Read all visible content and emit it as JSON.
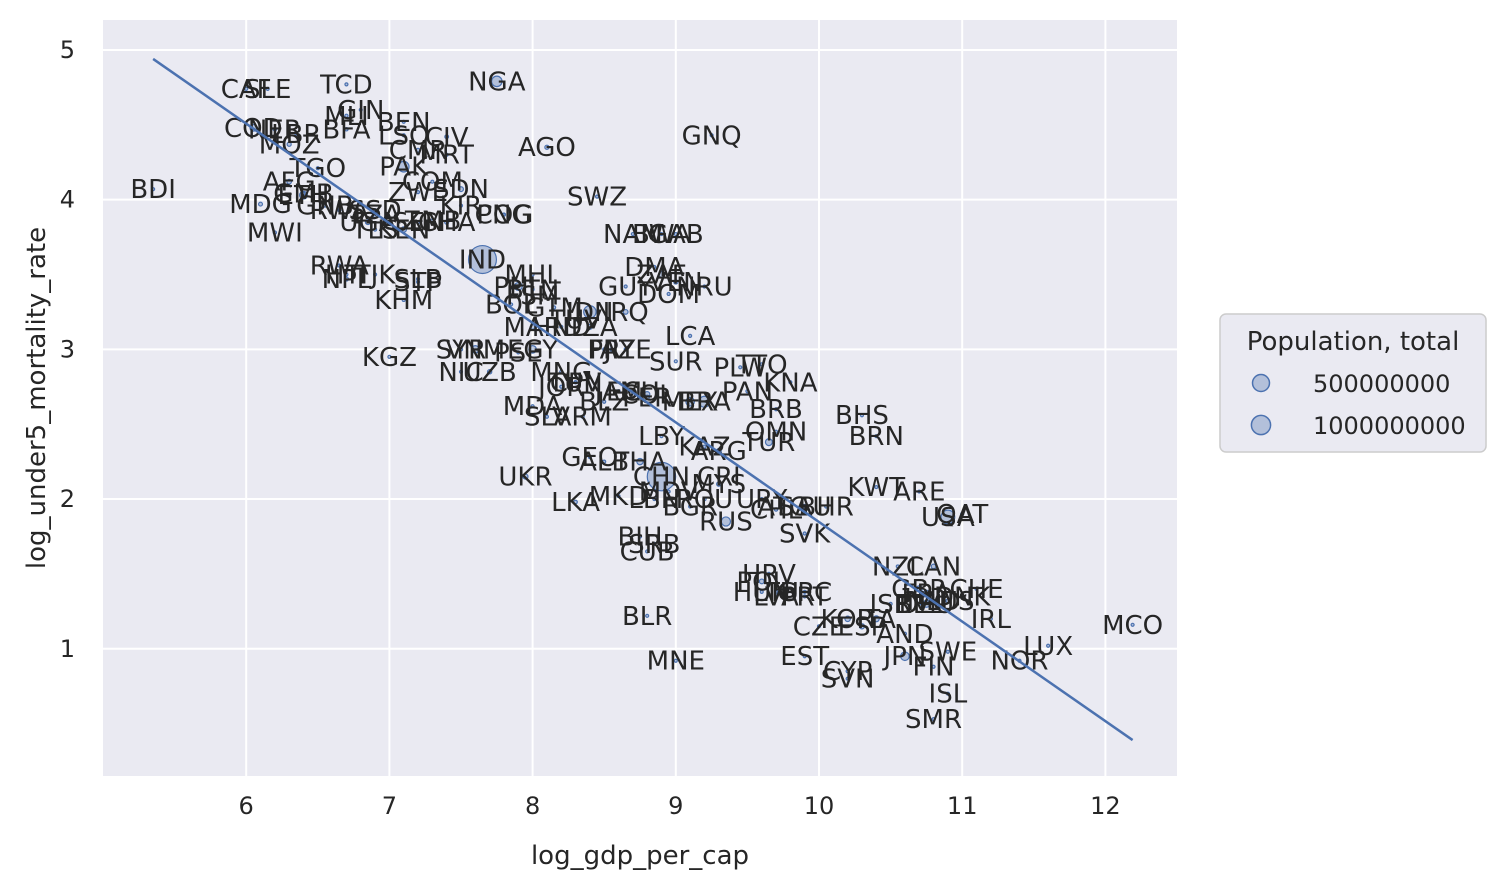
{
  "chart_data": {
    "type": "scatter",
    "title": "",
    "xlabel": "log_gdp_per_cap",
    "ylabel": "log_under5_mortality_rate",
    "xlim": [
      5.0,
      12.5
    ],
    "ylim": [
      0.15,
      5.2
    ],
    "xticks": [
      6,
      7,
      8,
      9,
      10,
      11,
      12
    ],
    "yticks": [
      1,
      2,
      3,
      4,
      5
    ],
    "grid": true,
    "legend": {
      "title": "Population, total",
      "placement": "right",
      "entries": [
        {
          "label": "500000000",
          "size": 500000000
        },
        {
          "label": "1000000000",
          "size": 1000000000
        }
      ]
    },
    "regression_line": {
      "x": [
        5.35,
        12.19
      ],
      "y": [
        4.94,
        0.39
      ]
    },
    "points": [
      {
        "label": "BDI",
        "x": 5.35,
        "y": 4.07,
        "pop": 11000000
      },
      {
        "label": "CAF",
        "x": 6.0,
        "y": 4.74,
        "pop": 5000000
      },
      {
        "label": "SLE",
        "x": 6.15,
        "y": 4.74,
        "pop": 7000000
      },
      {
        "label": "COD",
        "x": 6.05,
        "y": 4.48,
        "pop": 78000000
      },
      {
        "label": "NER",
        "x": 6.2,
        "y": 4.47,
        "pop": 21000000
      },
      {
        "label": "MOZ",
        "x": 6.3,
        "y": 4.37,
        "pop": 29000000
      },
      {
        "label": "LBR",
        "x": 6.35,
        "y": 4.44,
        "pop": 4700000
      },
      {
        "label": "TCD",
        "x": 6.7,
        "y": 4.77,
        "pop": 15000000
      },
      {
        "label": "GIN",
        "x": 6.8,
        "y": 4.6,
        "pop": 12000000
      },
      {
        "label": "MLI",
        "x": 6.7,
        "y": 4.56,
        "pop": 18000000
      },
      {
        "label": "BFA",
        "x": 6.7,
        "y": 4.47,
        "pop": 19000000
      },
      {
        "label": "BEN",
        "x": 7.1,
        "y": 4.52,
        "pop": 11000000
      },
      {
        "label": "LSO",
        "x": 7.1,
        "y": 4.43,
        "pop": 2200000
      },
      {
        "label": "CIV",
        "x": 7.4,
        "y": 4.42,
        "pop": 24000000
      },
      {
        "label": "CMR",
        "x": 7.2,
        "y": 4.33,
        "pop": 24000000
      },
      {
        "label": "MRT",
        "x": 7.4,
        "y": 4.3,
        "pop": 4300000
      },
      {
        "label": "TGO",
        "x": 6.5,
        "y": 4.21,
        "pop": 7600000
      },
      {
        "label": "PAK",
        "x": 7.1,
        "y": 4.22,
        "pop": 197000000
      },
      {
        "label": "GMB",
        "x": 6.4,
        "y": 4.04,
        "pop": 2100000
      },
      {
        "label": "AFG",
        "x": 6.3,
        "y": 4.12,
        "pop": 36000000
      },
      {
        "label": "COM",
        "x": 7.3,
        "y": 4.12,
        "pop": 800000
      },
      {
        "label": "SDN",
        "x": 7.5,
        "y": 4.07,
        "pop": 41000000
      },
      {
        "label": "ETH",
        "x": 6.4,
        "y": 4.03,
        "pop": 105000000
      },
      {
        "label": "ZWE",
        "x": 7.2,
        "y": 4.05,
        "pop": 14000000
      },
      {
        "label": "MDG",
        "x": 6.1,
        "y": 3.97,
        "pop": 26000000
      },
      {
        "label": "GNB",
        "x": 6.55,
        "y": 3.96,
        "pop": 1800000
      },
      {
        "label": "RWA",
        "x": 6.65,
        "y": 3.93,
        "pop": 12000000
      },
      {
        "label": "SSD",
        "x": 6.9,
        "y": 3.93,
        "pop": 11000000
      },
      {
        "label": "TZA",
        "x": 6.9,
        "y": 3.9,
        "pop": 56000000
      },
      {
        "label": "KIR",
        "x": 7.5,
        "y": 3.96,
        "pop": 110000
      },
      {
        "label": "MWI",
        "x": 6.2,
        "y": 3.78,
        "pop": 18000000
      },
      {
        "label": "UGA",
        "x": 6.85,
        "y": 3.85,
        "pop": 43000000
      },
      {
        "label": "TLS",
        "x": 6.9,
        "y": 3.8,
        "pop": 1300000
      },
      {
        "label": "KEN",
        "x": 7.1,
        "y": 3.8,
        "pop": 50000000
      },
      {
        "label": "SEN",
        "x": 7.2,
        "y": 3.85,
        "pop": 16000000
      },
      {
        "label": "ZMB",
        "x": 7.3,
        "y": 3.86,
        "pop": 17000000
      },
      {
        "label": "GHA",
        "x": 7.4,
        "y": 3.85,
        "pop": 29000000
      },
      {
        "label": "PNG",
        "x": 7.8,
        "y": 3.9,
        "pop": 8300000
      },
      {
        "label": "COG",
        "x": 7.8,
        "y": 3.9,
        "pop": 5200000
      },
      {
        "label": "NGA",
        "x": 7.75,
        "y": 4.79,
        "pop": 191000000
      },
      {
        "label": "AGO",
        "x": 8.1,
        "y": 4.35,
        "pop": 30000000
      },
      {
        "label": "GNQ",
        "x": 9.25,
        "y": 4.43,
        "pop": 1300000
      },
      {
        "label": "SWZ",
        "x": 8.45,
        "y": 4.02,
        "pop": 1100000
      },
      {
        "label": "NAM",
        "x": 8.7,
        "y": 3.77,
        "pop": 2500000
      },
      {
        "label": "BWA",
        "x": 8.9,
        "y": 3.77,
        "pop": 2200000
      },
      {
        "label": "GAB",
        "x": 9.0,
        "y": 3.77,
        "pop": 2000000
      },
      {
        "label": "RWA",
        "x": 6.65,
        "y": 3.56,
        "pop": 12000000
      },
      {
        "label": "TJK",
        "x": 6.9,
        "y": 3.5,
        "pop": 9000000
      },
      {
        "label": "HTI",
        "x": 6.7,
        "y": 3.5,
        "pop": 11000000
      },
      {
        "label": "NPL",
        "x": 6.7,
        "y": 3.47,
        "pop": 28000000
      },
      {
        "label": "SLB",
        "x": 7.2,
        "y": 3.47,
        "pop": 650000
      },
      {
        "label": "STP",
        "x": 7.2,
        "y": 3.45,
        "pop": 200000
      },
      {
        "label": "KHM",
        "x": 7.1,
        "y": 3.33,
        "pop": 16000000
      },
      {
        "label": "IND",
        "x": 7.65,
        "y": 3.6,
        "pop": 1350000000
      },
      {
        "label": "MHL",
        "x": 8.0,
        "y": 3.5,
        "pop": 58000
      },
      {
        "label": "PHL",
        "x": 7.9,
        "y": 3.42,
        "pop": 107000000
      },
      {
        "label": "BTN",
        "x": 8.0,
        "y": 3.4,
        "pop": 750000
      },
      {
        "label": "FSM",
        "x": 8.0,
        "y": 3.36,
        "pop": 110000
      },
      {
        "label": "BOL",
        "x": 7.85,
        "y": 3.3,
        "pop": 11000000
      },
      {
        "label": "GTM",
        "x": 8.15,
        "y": 3.28,
        "pop": 17000000
      },
      {
        "label": "TUV",
        "x": 8.3,
        "y": 3.2,
        "pop": 11000
      },
      {
        "label": "IDN",
        "x": 8.4,
        "y": 3.25,
        "pop": 265000000
      },
      {
        "label": "IRQ",
        "x": 8.65,
        "y": 3.25,
        "pop": 38000000
      },
      {
        "label": "GUY",
        "x": 8.65,
        "y": 3.42,
        "pop": 780000
      },
      {
        "label": "DMA",
        "x": 8.85,
        "y": 3.55,
        "pop": 72000
      },
      {
        "label": "ZAF",
        "x": 8.9,
        "y": 3.5,
        "pop": 57000000
      },
      {
        "label": "VEN",
        "x": 9.0,
        "y": 3.45,
        "pop": 29000000
      },
      {
        "label": "NRU",
        "x": 9.2,
        "y": 3.42,
        "pop": 12000
      },
      {
        "label": "DOM",
        "x": 8.95,
        "y": 3.37,
        "pop": 10700000
      },
      {
        "label": "MAR",
        "x": 8.0,
        "y": 3.15,
        "pop": 36000000
      },
      {
        "label": "HND",
        "x": 8.2,
        "y": 3.15,
        "pop": 9400000
      },
      {
        "label": "DZA",
        "x": 8.4,
        "y": 3.15,
        "pop": 42000000
      },
      {
        "label": "FJI",
        "x": 8.5,
        "y": 3.0,
        "pop": 880000
      },
      {
        "label": "PRY",
        "x": 8.55,
        "y": 3.0,
        "pop": 6900000
      },
      {
        "label": "AZE",
        "x": 8.65,
        "y": 3.0,
        "pop": 9900000
      },
      {
        "label": "LCA",
        "x": 9.1,
        "y": 3.09,
        "pop": 180000
      },
      {
        "label": "KGZ",
        "x": 7.0,
        "y": 2.95,
        "pop": 6300000
      },
      {
        "label": "SYR",
        "x": 7.5,
        "y": 3.0,
        "pop": 17000000
      },
      {
        "label": "VNM",
        "x": 7.6,
        "y": 3.0,
        "pop": 95000000
      },
      {
        "label": "PSE",
        "x": 7.9,
        "y": 2.98,
        "pop": 4500000
      },
      {
        "label": "EGY",
        "x": 8.0,
        "y": 3.0,
        "pop": 98000000
      },
      {
        "label": "NIC",
        "x": 7.5,
        "y": 2.85,
        "pop": 6500000
      },
      {
        "label": "UZB",
        "x": 7.7,
        "y": 2.85,
        "pop": 32000000
      },
      {
        "label": "MNG",
        "x": 8.2,
        "y": 2.85,
        "pop": 3200000
      },
      {
        "label": "SUR",
        "x": 9.0,
        "y": 2.92,
        "pop": 570000
      },
      {
        "label": "TTO",
        "x": 9.6,
        "y": 2.9,
        "pop": 1400000
      },
      {
        "label": "PLW",
        "x": 9.45,
        "y": 2.88,
        "pop": 18000
      },
      {
        "label": "CPV",
        "x": 8.3,
        "y": 2.78,
        "pop": 540000
      },
      {
        "label": "JOR",
        "x": 8.2,
        "y": 2.75,
        "pop": 10000000
      },
      {
        "label": "TUN",
        "x": 8.3,
        "y": 2.78,
        "pop": 11500000
      },
      {
        "label": "ECU",
        "x": 8.7,
        "y": 2.72,
        "pop": 17000000
      },
      {
        "label": "COL",
        "x": 8.8,
        "y": 2.7,
        "pop": 49000000
      },
      {
        "label": "PER",
        "x": 8.8,
        "y": 2.68,
        "pop": 32000000
      },
      {
        "label": "JAM",
        "x": 8.6,
        "y": 2.72,
        "pop": 2900000
      },
      {
        "label": "MEX",
        "x": 9.1,
        "y": 2.65,
        "pop": 126000000
      },
      {
        "label": "PAN",
        "x": 9.5,
        "y": 2.72,
        "pop": 4200000
      },
      {
        "label": "KNA",
        "x": 9.8,
        "y": 2.78,
        "pop": 52000
      },
      {
        "label": "BRA",
        "x": 9.2,
        "y": 2.65,
        "pop": 209000000
      },
      {
        "label": "MDA",
        "x": 8.0,
        "y": 2.62,
        "pop": 3500000
      },
      {
        "label": "SLV",
        "x": 8.1,
        "y": 2.55,
        "pop": 6400000
      },
      {
        "label": "ARM",
        "x": 8.35,
        "y": 2.55,
        "pop": 2950000
      },
      {
        "label": "BLZ",
        "x": 8.5,
        "y": 2.65,
        "pop": 380000
      },
      {
        "label": "BRB",
        "x": 9.7,
        "y": 2.6,
        "pop": 290000
      },
      {
        "label": "BHS",
        "x": 10.3,
        "y": 2.56,
        "pop": 390000
      },
      {
        "label": "LBY",
        "x": 8.9,
        "y": 2.42,
        "pop": 6700000
      },
      {
        "label": "OMN",
        "x": 9.7,
        "y": 2.45,
        "pop": 4800000
      },
      {
        "label": "TUR",
        "x": 9.65,
        "y": 2.38,
        "pop": 82000000
      },
      {
        "label": "BRN",
        "x": 10.4,
        "y": 2.42,
        "pop": 430000
      },
      {
        "label": "ARG",
        "x": 9.3,
        "y": 2.32,
        "pop": 44000000
      },
      {
        "label": "KAZ",
        "x": 9.2,
        "y": 2.35,
        "pop": 18000000
      },
      {
        "label": "GEO",
        "x": 8.4,
        "y": 2.28,
        "pop": 3700000
      },
      {
        "label": "ALB",
        "x": 8.5,
        "y": 2.25,
        "pop": 2900000
      },
      {
        "label": "THA",
        "x": 8.75,
        "y": 2.25,
        "pop": 69000000
      },
      {
        "label": "UKR",
        "x": 7.95,
        "y": 2.15,
        "pop": 44000000
      },
      {
        "label": "CHN",
        "x": 8.9,
        "y": 2.15,
        "pop": 1400000000
      },
      {
        "label": "CRI",
        "x": 9.3,
        "y": 2.15,
        "pop": 5000000
      },
      {
        "label": "MYS",
        "x": 9.3,
        "y": 2.1,
        "pop": 32000000
      },
      {
        "label": "KWT",
        "x": 10.4,
        "y": 2.08,
        "pop": 4100000
      },
      {
        "label": "ARE",
        "x": 10.7,
        "y": 2.05,
        "pop": 9600000
      },
      {
        "label": "MKD",
        "x": 8.6,
        "y": 2.02,
        "pop": 2100000
      },
      {
        "label": "LBN",
        "x": 8.85,
        "y": 2.0,
        "pop": 6800000
      },
      {
        "label": "MDV",
        "x": 8.95,
        "y": 2.05,
        "pop": 520000
      },
      {
        "label": "LKA",
        "x": 8.3,
        "y": 1.98,
        "pop": 21700000
      },
      {
        "label": "ROU",
        "x": 9.2,
        "y": 2.0,
        "pop": 19500000
      },
      {
        "label": "URY",
        "x": 9.6,
        "y": 2.0,
        "pop": 3500000
      },
      {
        "label": "ATG",
        "x": 9.75,
        "y": 1.95,
        "pop": 96000
      },
      {
        "label": "BHR",
        "x": 10.05,
        "y": 1.95,
        "pop": 1600000
      },
      {
        "label": "SAU",
        "x": 9.9,
        "y": 1.95,
        "pop": 33700000
      },
      {
        "label": "CHL",
        "x": 9.7,
        "y": 1.93,
        "pop": 18700000
      },
      {
        "label": "BGR",
        "x": 9.1,
        "y": 1.95,
        "pop": 7000000
      },
      {
        "label": "RUS",
        "x": 9.35,
        "y": 1.85,
        "pop": 144000000
      },
      {
        "label": "QAT",
        "x": 11.0,
        "y": 1.9,
        "pop": 2800000
      },
      {
        "label": "USA",
        "x": 10.9,
        "y": 1.88,
        "pop": 327000000
      },
      {
        "label": "SVK",
        "x": 9.9,
        "y": 1.77,
        "pop": 5400000
      },
      {
        "label": "BIH",
        "x": 8.75,
        "y": 1.75,
        "pop": 3300000
      },
      {
        "label": "SRB",
        "x": 8.85,
        "y": 1.7,
        "pop": 7000000
      },
      {
        "label": "CUB",
        "x": 8.8,
        "y": 1.65,
        "pop": 11300000
      },
      {
        "label": "NZL",
        "x": 10.55,
        "y": 1.55,
        "pop": 4900000
      },
      {
        "label": "CAN",
        "x": 10.8,
        "y": 1.55,
        "pop": 37000000
      },
      {
        "label": "HRV",
        "x": 9.65,
        "y": 1.5,
        "pop": 4100000
      },
      {
        "label": "POL",
        "x": 9.6,
        "y": 1.45,
        "pop": 38000000
      },
      {
        "label": "GBR",
        "x": 10.7,
        "y": 1.4,
        "pop": 66000000
      },
      {
        "label": "FRA",
        "x": 10.75,
        "y": 1.37,
        "pop": 67000000
      },
      {
        "label": "CHE",
        "x": 11.1,
        "y": 1.4,
        "pop": 8500000
      },
      {
        "label": "DNK",
        "x": 11.0,
        "y": 1.35,
        "pop": 5800000
      },
      {
        "label": "LTU",
        "x": 9.7,
        "y": 1.38,
        "pop": 2800000
      },
      {
        "label": "HUN",
        "x": 9.6,
        "y": 1.38,
        "pop": 9800000
      },
      {
        "label": "LVA",
        "x": 9.7,
        "y": 1.35,
        "pop": 1900000
      },
      {
        "label": "PRT",
        "x": 9.9,
        "y": 1.35,
        "pop": 10300000
      },
      {
        "label": "GRC",
        "x": 9.9,
        "y": 1.38,
        "pop": 10700000
      },
      {
        "label": "ISR",
        "x": 10.5,
        "y": 1.3,
        "pop": 8900000
      },
      {
        "label": "BEL",
        "x": 10.7,
        "y": 1.3,
        "pop": 11400000
      },
      {
        "label": "NLD",
        "x": 10.8,
        "y": 1.32,
        "pop": 17200000
      },
      {
        "label": "DEU",
        "x": 10.75,
        "y": 1.3,
        "pop": 82900000
      },
      {
        "label": "AUS",
        "x": 10.9,
        "y": 1.32,
        "pop": 25000000
      },
      {
        "label": "KOR",
        "x": 10.2,
        "y": 1.2,
        "pop": 51600000
      },
      {
        "label": "ITA",
        "x": 10.4,
        "y": 1.2,
        "pop": 60400000
      },
      {
        "label": "IRL",
        "x": 11.2,
        "y": 1.2,
        "pop": 4800000
      },
      {
        "label": "CZE",
        "x": 10.0,
        "y": 1.15,
        "pop": 10600000
      },
      {
        "label": "ESP",
        "x": 10.3,
        "y": 1.15,
        "pop": 46700000
      },
      {
        "label": "AND",
        "x": 10.6,
        "y": 1.1,
        "pop": 77000
      },
      {
        "label": "MCO",
        "x": 12.19,
        "y": 1.16,
        "pop": 39000
      },
      {
        "label": "LUX",
        "x": 11.6,
        "y": 1.02,
        "pop": 600000
      },
      {
        "label": "BLR",
        "x": 8.8,
        "y": 1.22,
        "pop": 9500000
      },
      {
        "label": "MNE",
        "x": 9.0,
        "y": 0.92,
        "pop": 620000
      },
      {
        "label": "EST",
        "x": 9.9,
        "y": 0.95,
        "pop": 1300000
      },
      {
        "label": "SWE",
        "x": 10.9,
        "y": 0.98,
        "pop": 10200000
      },
      {
        "label": "NOR",
        "x": 11.4,
        "y": 0.92,
        "pop": 5300000
      },
      {
        "label": "JPN",
        "x": 10.6,
        "y": 0.95,
        "pop": 126500000
      },
      {
        "label": "CYP",
        "x": 10.2,
        "y": 0.85,
        "pop": 1200000
      },
      {
        "label": "FIN",
        "x": 10.8,
        "y": 0.88,
        "pop": 5500000
      },
      {
        "label": "SVN",
        "x": 10.2,
        "y": 0.8,
        "pop": 2100000
      },
      {
        "label": "ISL",
        "x": 10.9,
        "y": 0.7,
        "pop": 350000
      },
      {
        "label": "SMR",
        "x": 10.8,
        "y": 0.53,
        "pop": 34000
      }
    ]
  }
}
